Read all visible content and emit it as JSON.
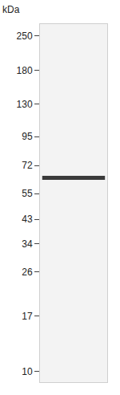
{
  "chart_data": {
    "type": "scatter",
    "title": "kDa",
    "categories": [
      null
    ],
    "values": [
      64
    ],
    "color": "#3a3a3a",
    "marker": "line-ew",
    "log": "y",
    "ylim": [
      9,
      280
    ],
    "yticks": [
      250,
      180,
      130,
      95,
      72,
      55,
      43,
      34,
      26,
      17,
      10
    ],
    "grid": false,
    "tick_labels": "y"
  }
}
